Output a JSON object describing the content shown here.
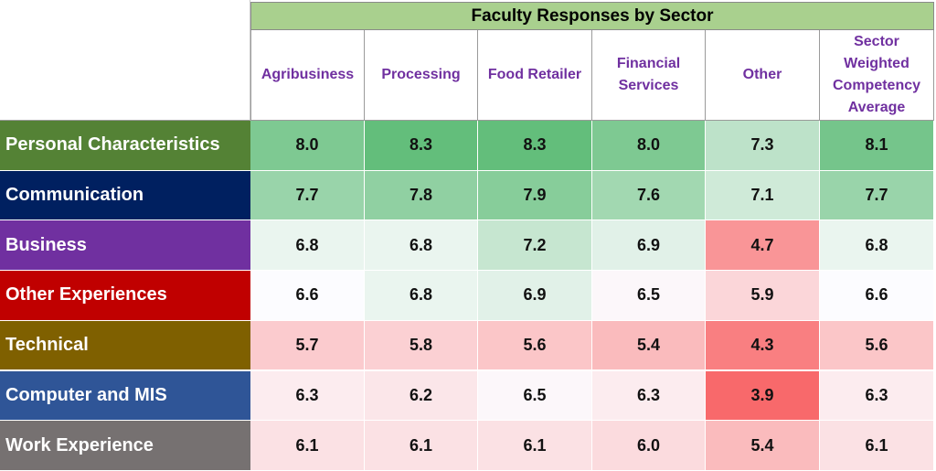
{
  "chart_data": {
    "type": "heatmap",
    "title": "Faculty Responses by Sector",
    "columns": [
      "Agribusiness",
      "Processing",
      "Food Retailer",
      "Financial Services",
      "Other",
      "Sector Weighted Competency Average"
    ],
    "rows": [
      "Personal Characteristics",
      "Communication",
      "Business",
      "Other Experiences",
      "Technical",
      "Computer and MIS",
      "Work Experience"
    ],
    "values": [
      [
        8.0,
        8.3,
        8.3,
        8.0,
        7.3,
        8.1
      ],
      [
        7.7,
        7.8,
        7.9,
        7.6,
        7.1,
        7.7
      ],
      [
        6.8,
        6.8,
        7.2,
        6.9,
        4.7,
        6.8
      ],
      [
        6.6,
        6.8,
        6.9,
        6.5,
        5.9,
        6.6
      ],
      [
        5.7,
        5.8,
        5.6,
        5.4,
        4.3,
        5.6
      ],
      [
        6.3,
        6.2,
        6.5,
        6.3,
        3.9,
        6.3
      ],
      [
        6.1,
        6.1,
        6.1,
        6.0,
        5.4,
        6.1
      ]
    ],
    "row_colors": [
      "#548235",
      "#002060",
      "#7030a0",
      "#c00000",
      "#7f6000",
      "#2f5597",
      "#767171"
    ],
    "header_color": "#7030a0",
    "title_bg": "#a9d08e",
    "color_scale": {
      "low": "#f8696b",
      "mid": "#fcfcff",
      "high": "#63be7b"
    }
  }
}
